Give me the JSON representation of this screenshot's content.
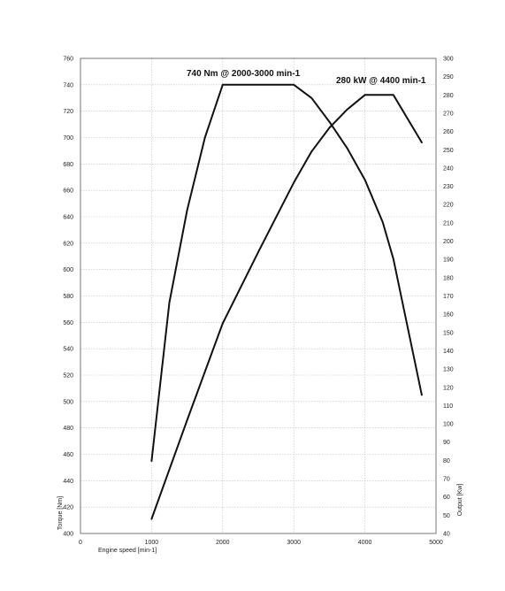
{
  "chart_data": {
    "type": "line",
    "xlabel": "Engine speed [min-1]",
    "ylabel_left": "Torque [Nm]",
    "ylabel_right": "Output [Kw]",
    "xlim": [
      0,
      5000
    ],
    "ylim_left": [
      400,
      760
    ],
    "ylim_right": [
      40,
      300
    ],
    "x_ticks": [
      0,
      1000,
      2000,
      3000,
      4000,
      5000
    ],
    "y_ticks_left": [
      400,
      420,
      440,
      460,
      480,
      500,
      520,
      540,
      560,
      580,
      600,
      620,
      640,
      660,
      680,
      700,
      720,
      740,
      760
    ],
    "y_ticks_right": [
      40,
      50,
      60,
      70,
      80,
      90,
      100,
      110,
      120,
      130,
      140,
      150,
      160,
      170,
      180,
      190,
      200,
      210,
      220,
      230,
      240,
      250,
      260,
      270,
      280,
      290,
      300
    ],
    "grid": true,
    "series": [
      {
        "axis": "left",
        "x": [
          1000,
          1250,
          1500,
          1750,
          2000,
          2500,
          3000,
          3250,
          3500,
          3750,
          4000,
          4250,
          4400,
          4800
        ],
        "values": [
          455,
          575,
          645,
          700,
          740,
          740,
          740,
          730,
          712,
          692,
          668,
          636,
          608,
          505
        ]
      },
      {
        "axis": "right",
        "x": [
          1000,
          1500,
          2000,
          2500,
          3000,
          3250,
          3500,
          3750,
          4000,
          4250,
          4400,
          4800
        ],
        "values": [
          48,
          102,
          155,
          194,
          232,
          249,
          262,
          272,
          280,
          280,
          280,
          254
        ]
      }
    ],
    "annotations": [
      {
        "text": "740 Nm @ 2000-3000 min-1"
      },
      {
        "text": "280 kW @ 4400 min-1"
      }
    ]
  }
}
